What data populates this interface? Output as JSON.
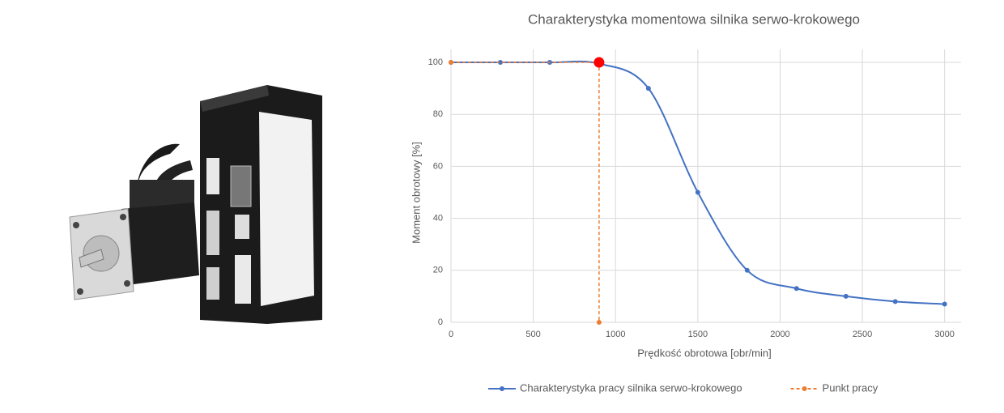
{
  "chart_data": {
    "type": "line",
    "title": "Charakterystyka momentowa silnika serwo-krokowego",
    "xlabel": "Prędkość obrotowa [obr/min]",
    "ylabel": "Moment obrotowy [%]",
    "xlim": [
      0,
      3100
    ],
    "xticks": [
      0,
      500,
      1000,
      1500,
      2000,
      2500,
      3000
    ],
    "ylim": [
      0,
      105
    ],
    "yticks": [
      0,
      20,
      40,
      60,
      80,
      100
    ],
    "grid": true,
    "legend": "bottom",
    "series": [
      {
        "name": "Charakterystyka pracy silnika serwo-krokowego",
        "color": "#4472c4",
        "smooth": true,
        "dashed": false,
        "x": [
          0,
          300,
          600,
          900,
          1200,
          1500,
          1800,
          2100,
          2400,
          2700,
          3000
        ],
        "values": [
          100,
          100,
          100,
          99.5,
          90,
          50,
          20,
          13,
          10,
          8,
          7
        ]
      },
      {
        "name": "Punkt pracy",
        "color": "#ed7d31",
        "smooth": false,
        "dashed": true,
        "x": [
          0,
          900,
          900
        ],
        "values": [
          100,
          100,
          0
        ]
      }
    ],
    "highlight": {
      "x": 900,
      "value": 100,
      "color": "#ff0000"
    }
  }
}
